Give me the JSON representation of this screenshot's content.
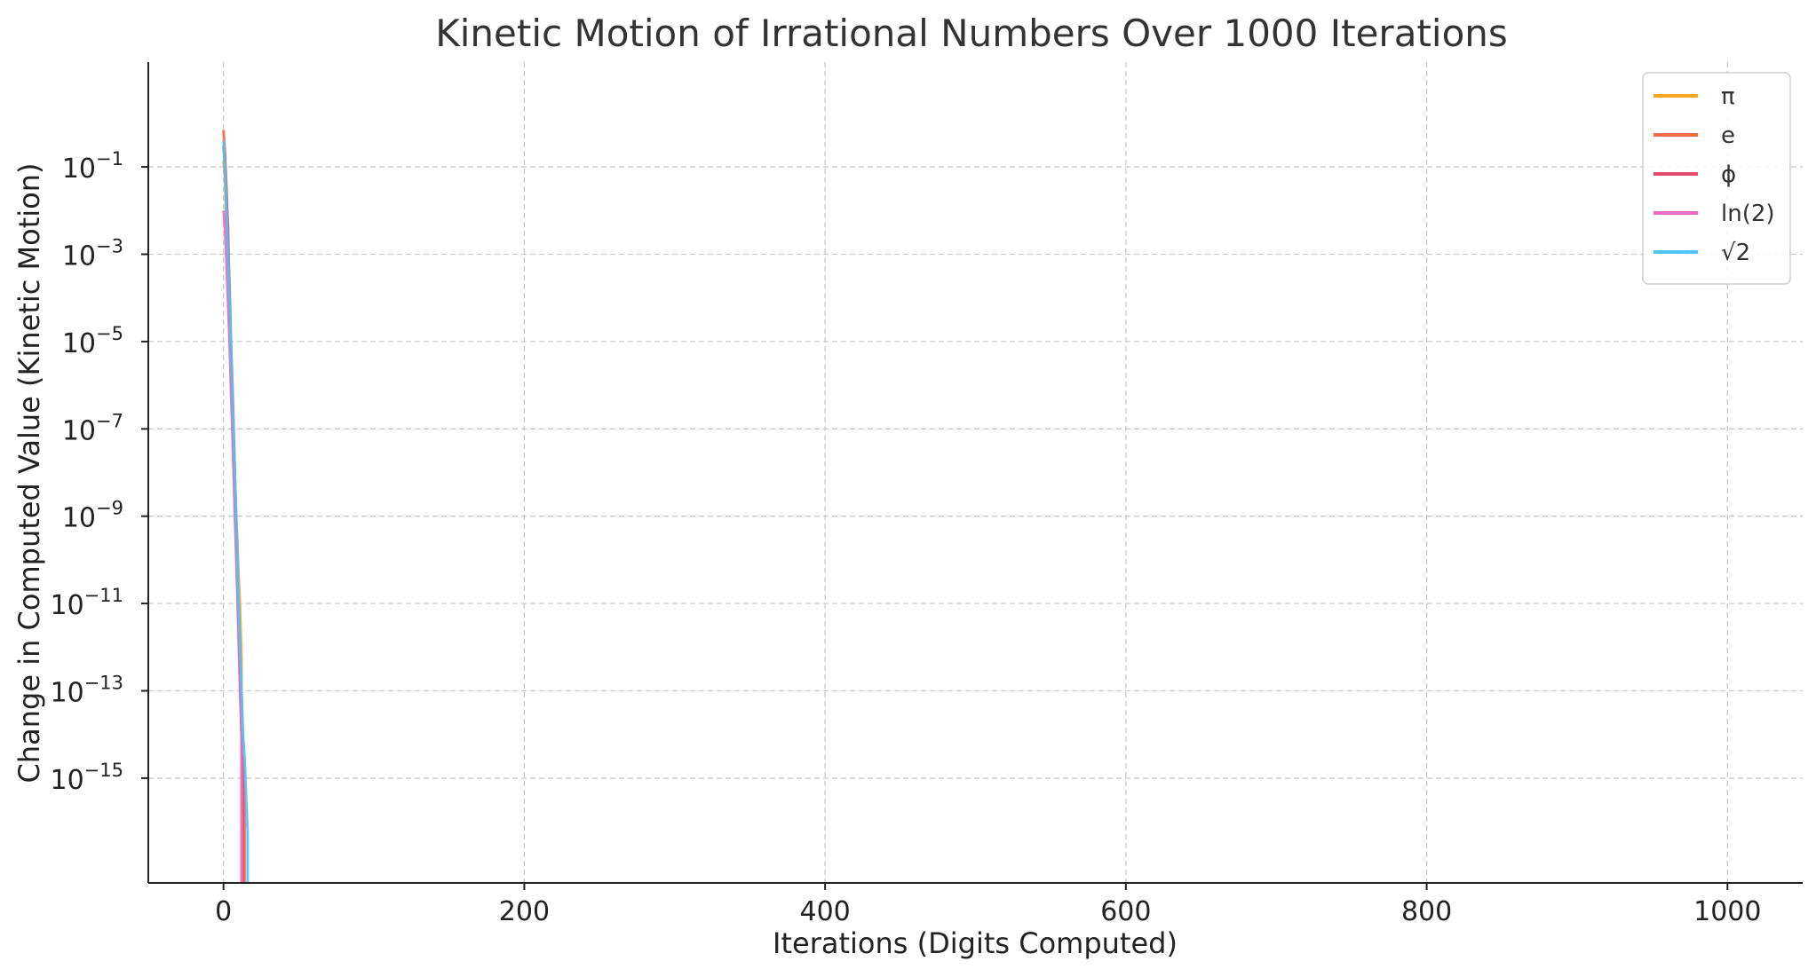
{
  "chart_data": {
    "type": "line",
    "title": "Kinetic Motion of Irrational Numbers Over 1000 Iterations",
    "xlabel": "Iterations (Digits Computed)",
    "ylabel": "Change in Computed Value (Kinetic Motion)",
    "xlim": [
      -50,
      1050
    ],
    "ylim_exponent": [
      -17.4,
      1.4
    ],
    "yscale": "log",
    "grid": true,
    "legend_position": "top-right",
    "x_ticks": [
      {
        "value": 0,
        "label": "0"
      },
      {
        "value": 200,
        "label": "200"
      },
      {
        "value": 400,
        "label": "400"
      },
      {
        "value": 600,
        "label": "600"
      },
      {
        "value": 800,
        "label": "800"
      },
      {
        "value": 1000,
        "label": "1000"
      }
    ],
    "y_ticks": [
      {
        "exp": -1,
        "label": "−1"
      },
      {
        "exp": -3,
        "label": "−3"
      },
      {
        "exp": -5,
        "label": "−5"
      },
      {
        "exp": -7,
        "label": "−7"
      },
      {
        "exp": -9,
        "label": "−9"
      },
      {
        "exp": -11,
        "label": "−11"
      },
      {
        "exp": -13,
        "label": "−13"
      },
      {
        "exp": -15,
        "label": "−15"
      }
    ],
    "series": [
      {
        "name": "π",
        "color": "#f5a623",
        "points": [
          [
            0,
            0.14
          ],
          [
            1,
            0.06
          ],
          [
            2,
            0.002
          ],
          [
            3,
            0.0004
          ],
          [
            4,
            4e-05
          ],
          [
            5,
            6e-06
          ],
          [
            6,
            3e-07
          ],
          [
            7,
            5e-08
          ],
          [
            8,
            2e-09
          ],
          [
            9,
            4e-10
          ],
          [
            10,
            5e-11
          ],
          [
            11,
            8e-12
          ],
          [
            12,
            5e-13
          ]
        ]
      },
      {
        "name": "e",
        "color": "#f46b45",
        "points": [
          [
            0,
            0.7
          ],
          [
            1,
            0.2
          ],
          [
            2,
            0.03
          ],
          [
            3,
            0.002
          ],
          [
            4,
            0.0002
          ],
          [
            5,
            1e-05
          ],
          [
            6,
            1e-06
          ],
          [
            7,
            5e-08
          ],
          [
            8,
            3e-09
          ],
          [
            9,
            1.5e-10
          ],
          [
            10,
            7e-12
          ],
          [
            11,
            3e-13
          ],
          [
            12,
            2e-14
          ],
          [
            13,
            4e-15
          ],
          [
            14,
            5e-16
          ]
        ]
      },
      {
        "name": "ϕ",
        "color": "#e84a6f",
        "points": [
          [
            0,
            0.3
          ],
          [
            1,
            0.1
          ],
          [
            2,
            0.02
          ],
          [
            3,
            0.004
          ],
          [
            4,
            3e-05
          ],
          [
            5,
            3e-06
          ],
          [
            6,
            2e-07
          ],
          [
            7,
            1e-08
          ],
          [
            8,
            8e-10
          ],
          [
            9,
            5e-11
          ],
          [
            10,
            3e-12
          ],
          [
            11,
            2e-13
          ],
          [
            12,
            1e-14
          ],
          [
            13,
            1e-15
          ]
        ]
      },
      {
        "name": "ln(2)",
        "color": "#f06bbf",
        "points": [
          [
            0,
            0.01
          ],
          [
            1,
            0.004
          ],
          [
            2,
            0.0006
          ],
          [
            3,
            8e-05
          ],
          [
            4,
            1e-05
          ],
          [
            5,
            8e-07
          ],
          [
            6,
            7e-08
          ],
          [
            7,
            5e-09
          ],
          [
            8,
            4e-10
          ],
          [
            9,
            3e-11
          ],
          [
            10,
            2e-12
          ],
          [
            11,
            1e-13
          ],
          [
            12,
            1e-14
          ]
        ]
      },
      {
        "name": "√2",
        "color": "#4fc3f7",
        "points": [
          [
            0,
            0.4
          ],
          [
            1,
            0.09
          ],
          [
            2,
            0.01
          ],
          [
            3,
            0.001
          ],
          [
            4,
            0.0001
          ],
          [
            5,
            8e-06
          ],
          [
            6,
            6e-07
          ],
          [
            7,
            4e-08
          ],
          [
            8,
            3e-09
          ],
          [
            9,
            2e-10
          ],
          [
            10,
            1e-11
          ],
          [
            11,
            1e-12
          ],
          [
            12,
            1e-13
          ],
          [
            13,
            1e-14
          ],
          [
            14,
            3e-15
          ],
          [
            15,
            4e-16
          ],
          [
            16,
            6e-17
          ]
        ]
      }
    ]
  }
}
